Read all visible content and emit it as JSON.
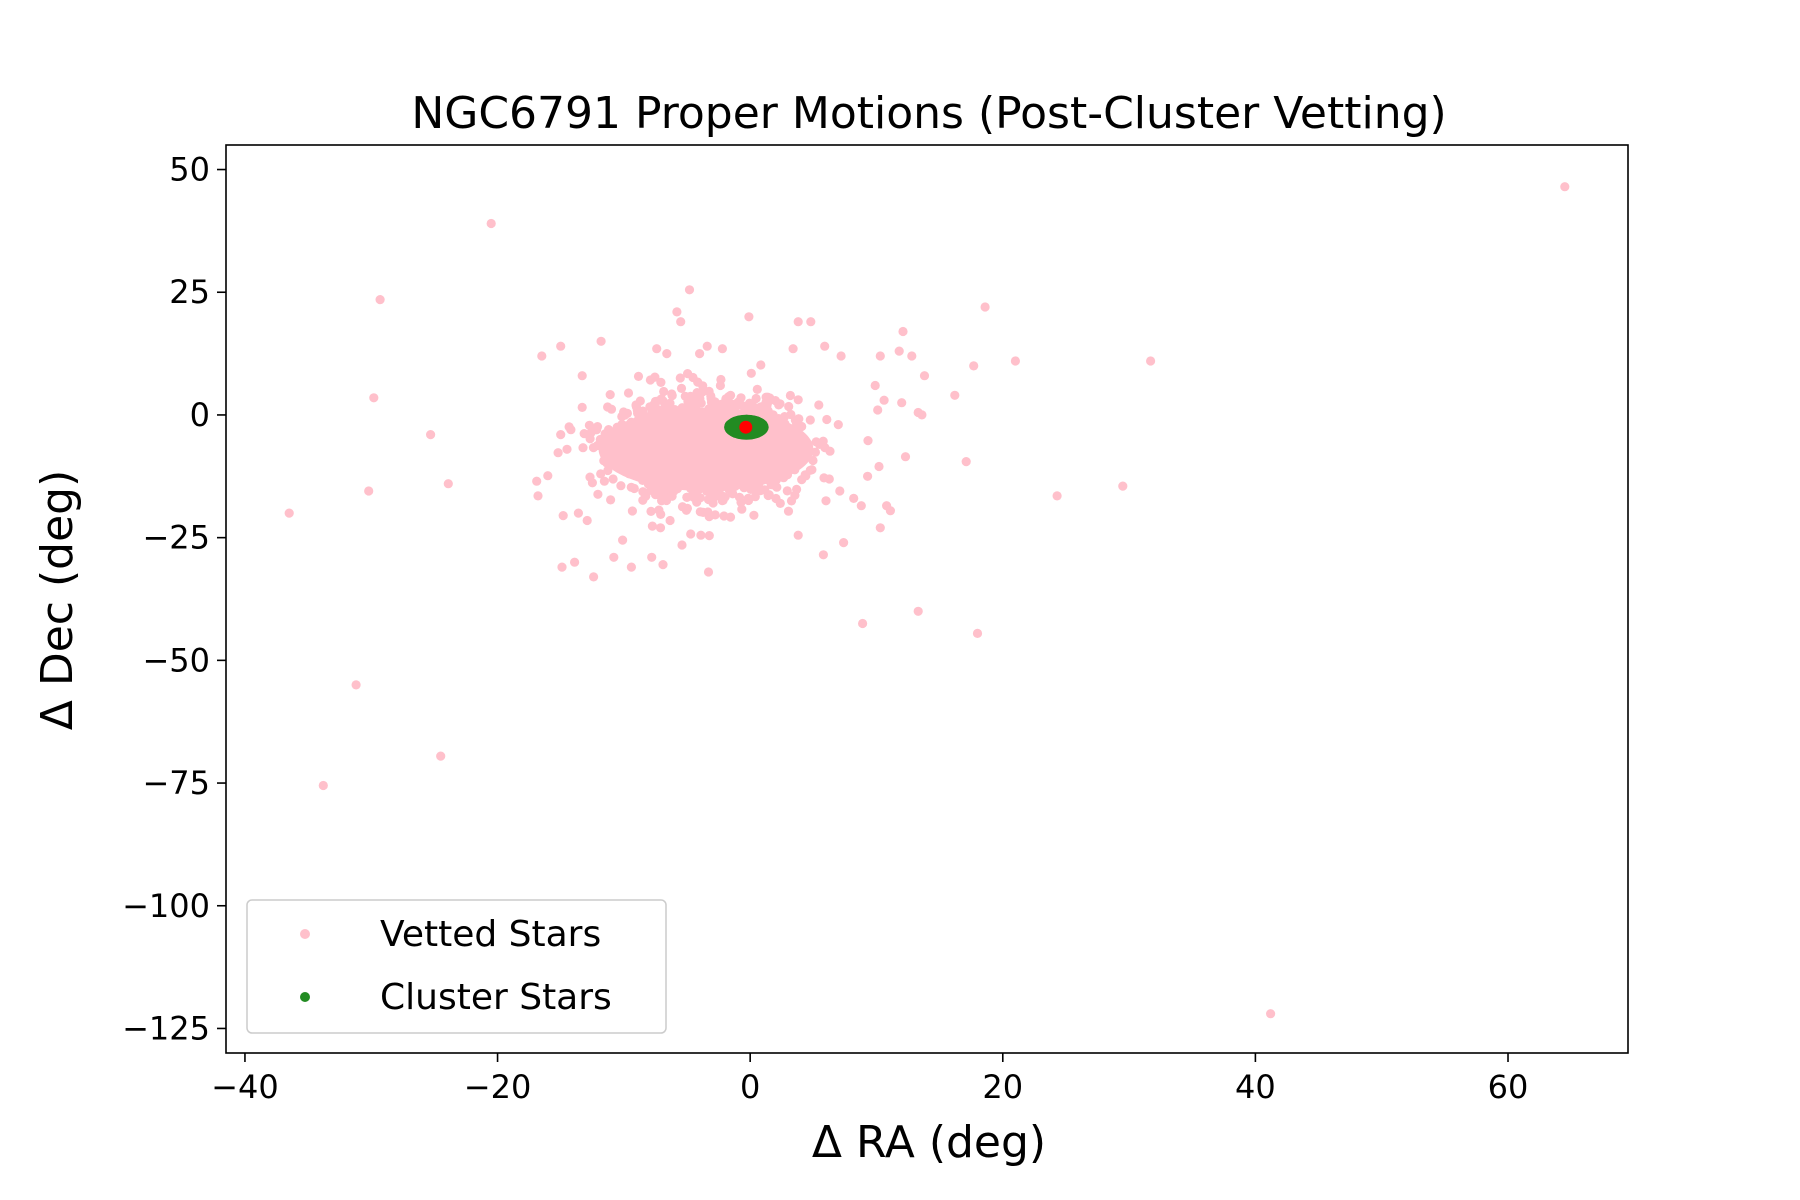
{
  "chart_data": {
    "type": "scatter",
    "title": "NGC6791 Proper Motions (Post-Cluster Vetting)",
    "xlabel": "Δ RA (deg)",
    "ylabel": "Δ Dec (deg)",
    "xlim": [
      -41.5,
      69.5
    ],
    "ylim": [
      -130,
      55
    ],
    "xticks": [
      -40,
      -20,
      0,
      20,
      40,
      60
    ],
    "yticks": [
      50,
      25,
      0,
      -25,
      -50,
      -75,
      -100,
      -125
    ],
    "xtick_labels": [
      "−40",
      "−20",
      "0",
      "20",
      "40",
      "60"
    ],
    "ytick_labels": [
      "50",
      "25",
      "0",
      "−25",
      "−50",
      "−75",
      "−100",
      "−125"
    ],
    "grid": false,
    "legend_position": "bottom-left",
    "series": [
      {
        "name": "Vetted Stars",
        "color": "#ffc0cb",
        "core": {
          "center": [
            -3.5,
            -7
          ],
          "spread": [
            3.6,
            5.2
          ],
          "count": 1400,
          "ellipse_half_axes": [
            8.5,
            8.5
          ]
        },
        "points": [
          [
            64.5,
            46.5
          ],
          [
            41.2,
            -122
          ],
          [
            -20.5,
            39
          ],
          [
            -29.3,
            23.5
          ],
          [
            -36.5,
            -20
          ],
          [
            -33.8,
            -75.5
          ],
          [
            -31.2,
            -55
          ],
          [
            -24.5,
            -69.5
          ],
          [
            -29.8,
            3.5
          ],
          [
            -30.2,
            -15.5
          ],
          [
            -25.3,
            -4
          ],
          [
            -23.9,
            -14
          ],
          [
            -16.5,
            12
          ],
          [
            -15,
            14
          ],
          [
            -11.8,
            15
          ],
          [
            -13.3,
            8
          ],
          [
            -15,
            -4
          ],
          [
            -14.5,
            -7
          ],
          [
            -16.9,
            -13.5
          ],
          [
            -16.8,
            -16.5
          ],
          [
            -14.8,
            -20.5
          ],
          [
            -13.6,
            -20
          ],
          [
            -12.9,
            -21.5
          ],
          [
            -14.9,
            -31
          ],
          [
            -13.9,
            -30
          ],
          [
            -12.4,
            -33
          ],
          [
            -10.8,
            -29
          ],
          [
            -9.4,
            -31
          ],
          [
            -10.1,
            -25.5
          ],
          [
            -7.8,
            -29
          ],
          [
            -6.9,
            -30.5
          ],
          [
            -5.4,
            -26.5
          ],
          [
            -7.1,
            -23
          ],
          [
            -3.9,
            -24.5
          ],
          [
            -3.3,
            -32
          ],
          [
            -5.8,
            21
          ],
          [
            -5.5,
            19
          ],
          [
            -4.8,
            25.5
          ],
          [
            -0.1,
            20
          ],
          [
            3.8,
            19
          ],
          [
            4.8,
            19
          ],
          [
            -7.4,
            13.5
          ],
          [
            -6.6,
            12.5
          ],
          [
            -4,
            12.5
          ],
          [
            -3.4,
            14
          ],
          [
            -2.2,
            13.5
          ],
          [
            3.4,
            13.5
          ],
          [
            5.9,
            14
          ],
          [
            7.2,
            12
          ],
          [
            10.3,
            12
          ],
          [
            11.8,
            13
          ],
          [
            12.1,
            17
          ],
          [
            12.8,
            12
          ],
          [
            13.8,
            8
          ],
          [
            9.9,
            6
          ],
          [
            10.6,
            3
          ],
          [
            10.1,
            1
          ],
          [
            12,
            2.5
          ],
          [
            13.3,
            0.5
          ],
          [
            13.6,
            0
          ],
          [
            16.2,
            4
          ],
          [
            17.7,
            10
          ],
          [
            18.6,
            22
          ],
          [
            21,
            11
          ],
          [
            31.7,
            11
          ],
          [
            24.3,
            -16.5
          ],
          [
            29.5,
            -14.5
          ],
          [
            17.1,
            -9.5
          ],
          [
            12.3,
            -8.5
          ],
          [
            10.2,
            -10.5
          ],
          [
            9.3,
            -12.5
          ],
          [
            10.8,
            -18.5
          ],
          [
            11.1,
            -19.5
          ],
          [
            10.3,
            -23
          ],
          [
            7.4,
            -26
          ],
          [
            5.8,
            -28.5
          ],
          [
            3.8,
            -24.5
          ],
          [
            8.9,
            -42.5
          ],
          [
            13.3,
            -40
          ],
          [
            18,
            -44.5
          ],
          [
            6,
            -17.5
          ],
          [
            8.2,
            -17
          ],
          [
            8.8,
            -18.5
          ],
          [
            7.1,
            -15.5
          ]
        ]
      },
      {
        "name": "Cluster Stars",
        "color": "#228b22",
        "core": {
          "center": [
            -0.3,
            -2.5
          ],
          "half_widths": [
            1.4,
            1.6
          ],
          "count": 600
        }
      }
    ],
    "center_marker": {
      "x": -0.35,
      "y": -2.5,
      "color": "#ff0000"
    }
  }
}
